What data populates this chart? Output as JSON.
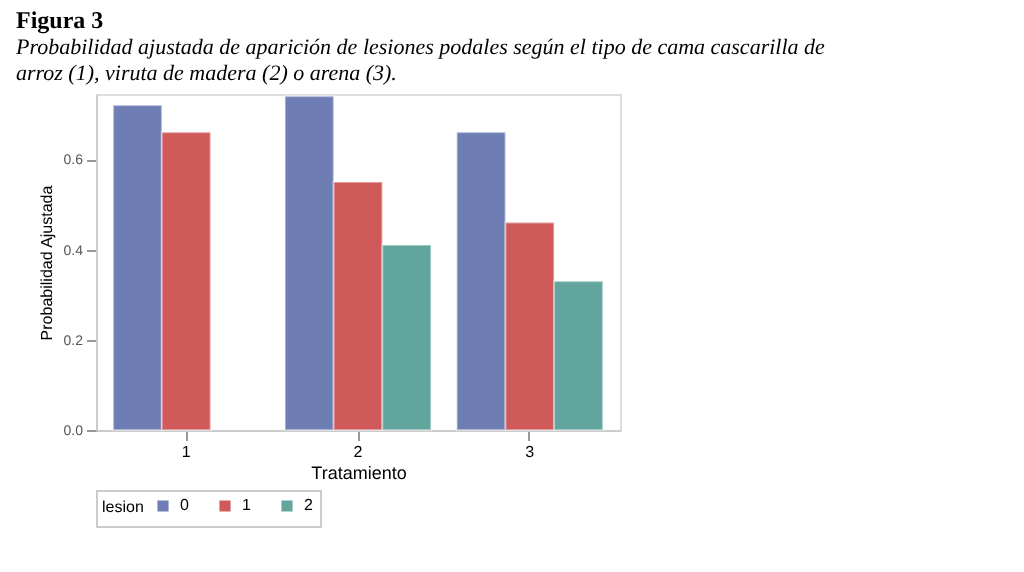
{
  "chart_data": {
    "type": "bar",
    "title": "Figura 3",
    "subtitle": "Probabilidad ajustada de aparición de lesiones podales según el tipo de cama cascarilla de arroz (1), viruta de madera (2) o arena (3).",
    "xlabel": "Tratamiento",
    "ylabel": "Probabilidad Ajustada",
    "legend_title": "lesion",
    "legend": "bottom",
    "grid": false,
    "categories": [
      "1",
      "2",
      "3"
    ],
    "series": [
      {
        "name": "0",
        "color": "#6e7db3",
        "values": [
          0.72,
          0.74,
          0.66
        ]
      },
      {
        "name": "1",
        "color": "#d05a5a",
        "values": [
          0.66,
          0.55,
          0.46
        ]
      },
      {
        "name": "2",
        "color": "#62a59c",
        "values": [
          null,
          0.41,
          0.33
        ]
      }
    ],
    "ylim": [
      0,
      0.745
    ],
    "yticks": [
      {
        "value": 0,
        "label": "0.0"
      },
      {
        "value": 0.2,
        "label": "0.2"
      },
      {
        "value": 0.4,
        "label": "0.4"
      },
      {
        "value": 0.6,
        "label": "0.6"
      }
    ]
  }
}
